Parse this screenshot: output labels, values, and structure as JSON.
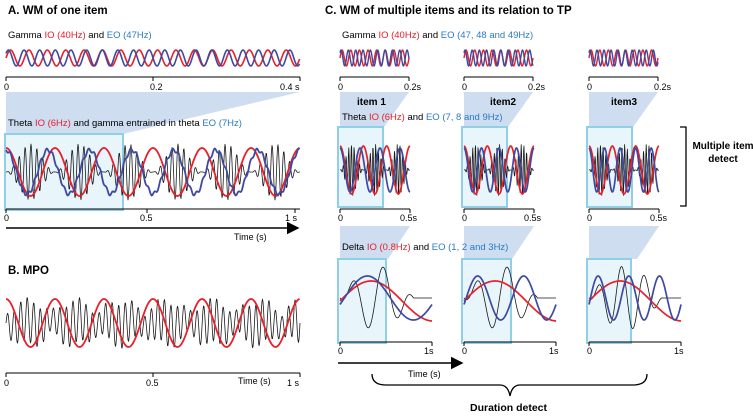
{
  "colors": {
    "io_red": "#e8202a",
    "eo_blue": "#3f49a0",
    "label_blue": "#2b7bbf",
    "window_box": "#8fd0e6",
    "projection": "#c9d9ee",
    "carrier": "#1a1a1a"
  },
  "panel_a": {
    "title": "A. WM of one item",
    "gamma": {
      "prefix": "Gamma ",
      "io": "IO (40Hz)",
      "mid": " and ",
      "eo": "EO (47Hz)"
    },
    "gamma_ticks": [
      "0",
      "0.2",
      "0.4 s"
    ],
    "theta": {
      "prefix": "Theta ",
      "io": "IO (6Hz)",
      "mid": " and gamma entrained in theta ",
      "eo": "EO (7Hz)"
    },
    "theta_ticks": [
      "0",
      "0.5",
      "1 s"
    ],
    "time_label": "Time (s)"
  },
  "panel_b": {
    "title": "B. MPO",
    "ticks": [
      "0",
      "0.5",
      "Time (s)",
      "1 s"
    ]
  },
  "panel_c": {
    "title": "C. WM of multiple items and its relation to TP",
    "gamma": {
      "prefix": "Gamma ",
      "io": "IO (40Hz)",
      "mid": " and ",
      "eo": "EO (47, 48 and 49Hz)"
    },
    "theta": {
      "prefix": "Theta ",
      "io": "IO (6Hz)",
      "mid": " and ",
      "eo": "EO (7, 8 and 9Hz)"
    },
    "delta": {
      "prefix": "Delta ",
      "io": "IO (0.8Hz)",
      "mid": " and ",
      "eo": "EO (1, 2 and 3Hz)"
    },
    "items": [
      "item 1",
      "item2",
      "item3"
    ],
    "gamma_ticks": [
      "0",
      "0.2s"
    ],
    "theta_ticks": [
      "0",
      "0.5s"
    ],
    "delta_ticks": [
      "0",
      "1s"
    ],
    "time_label": "Time (s)",
    "multiple_item_detect": "Multiple item detect",
    "duration_detect": "Duration detect"
  }
}
